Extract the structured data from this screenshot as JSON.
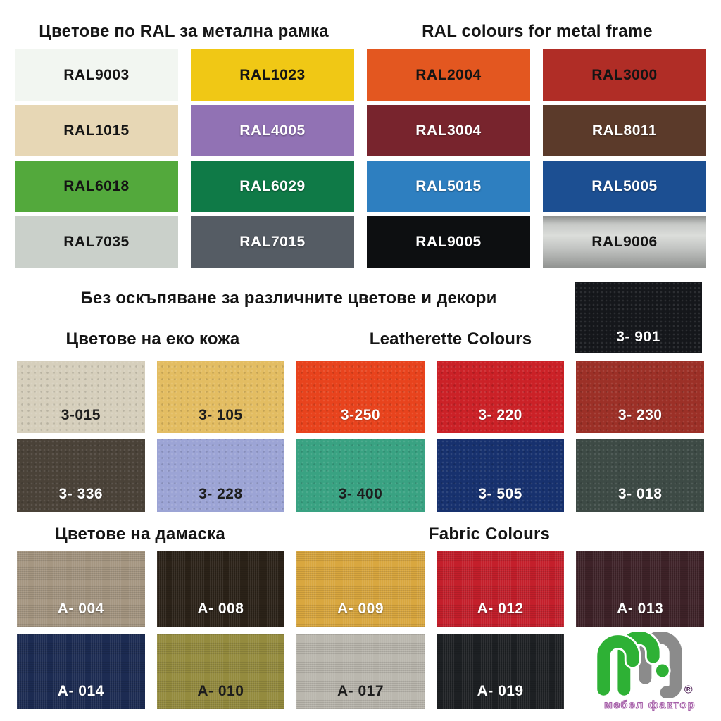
{
  "page": {
    "background": "#ffffff",
    "title_color": "#151515"
  },
  "ral_section": {
    "title_bg": "Цветове по RAL за метална рамка",
    "title_en": "RAL colours for metal frame",
    "swatches": [
      {
        "code": "RAL9003",
        "bg": "#f2f6f1",
        "fg": "#141414"
      },
      {
        "code": "RAL1023",
        "bg": "#f0c815",
        "fg": "#141414"
      },
      {
        "code": "RAL2004",
        "bg": "#e35720",
        "fg": "#141414"
      },
      {
        "code": "RAL3000",
        "bg": "#b02d26",
        "fg": "#141414"
      },
      {
        "code": "RAL1015",
        "bg": "#e7d7b5",
        "fg": "#141414"
      },
      {
        "code": "RAL4005",
        "bg": "#9172b4",
        "fg": "#ffffff"
      },
      {
        "code": "RAL3004",
        "bg": "#78242d",
        "fg": "#ffffff"
      },
      {
        "code": "RAL8011",
        "bg": "#5b3a2a",
        "fg": "#ffffff"
      },
      {
        "code": "RAL6018",
        "bg": "#53a93c",
        "fg": "#141414"
      },
      {
        "code": "RAL6029",
        "bg": "#0f7a47",
        "fg": "#ffffff"
      },
      {
        "code": "RAL5015",
        "bg": "#2e7fc0",
        "fg": "#ffffff"
      },
      {
        "code": "RAL5005",
        "bg": "#1c4f92",
        "fg": "#ffffff"
      },
      {
        "code": "RAL7035",
        "bg": "#cad0ca",
        "fg": "#141414"
      },
      {
        "code": "RAL7015",
        "bg": "#555c64",
        "fg": "#ffffff"
      },
      {
        "code": "RAL9005",
        "bg": "#0d0f11",
        "fg": "#ffffff"
      },
      {
        "code": "RAL9006",
        "bg": "#c4c6c4",
        "fg": "#141414",
        "metallic": true
      }
    ]
  },
  "middle_note": "Без оскъпяване за различните цветове и декори",
  "leatherette_section": {
    "title_bg": "Цветове на еко кожа",
    "title_en": "Leatherette Colours",
    "corner_swatch": {
      "code": "3- 901",
      "bg": "#15171b",
      "fg": "#ffffff"
    },
    "swatches": [
      {
        "code": "3-015",
        "bg": "#d6cfbc",
        "fg": "#1d1d1d"
      },
      {
        "code": "3- 105",
        "bg": "#e3bd62",
        "fg": "#1d1d1d"
      },
      {
        "code": "3-250",
        "bg": "#e8431d",
        "fg": "#ffffff"
      },
      {
        "code": "3- 220",
        "bg": "#cb2127",
        "fg": "#ffffff"
      },
      {
        "code": "3- 230",
        "bg": "#9c3027",
        "fg": "#ffffff"
      },
      {
        "code": "3- 336",
        "bg": "#4a4238",
        "fg": "#ffffff"
      },
      {
        "code": "3- 228",
        "bg": "#9ca4d5",
        "fg": "#1d1d1d"
      },
      {
        "code": "3- 400",
        "bg": "#39a282",
        "fg": "#1d1d1d"
      },
      {
        "code": "3- 505",
        "bg": "#17316e",
        "fg": "#ffffff"
      },
      {
        "code": "3- 018",
        "bg": "#3d4a45",
        "fg": "#ffffff"
      }
    ]
  },
  "fabric_section": {
    "title_bg": "Цветове на дамаска",
    "title_en": "Fabric Colours",
    "swatches": [
      {
        "code": "A- 004",
        "bg": "#a59681",
        "fg": "#ffffff"
      },
      {
        "code": "A- 008",
        "bg": "#2b2218",
        "fg": "#ffffff"
      },
      {
        "code": "A- 009",
        "bg": "#d9a73f",
        "fg": "#ffffff"
      },
      {
        "code": "A- 012",
        "bg": "#c41f2b",
        "fg": "#ffffff"
      },
      {
        "code": "A- 013",
        "bg": "#3e2228",
        "fg": "#ffffff"
      },
      {
        "code": "A- 014",
        "bg": "#1c2b52",
        "fg": "#ffffff"
      },
      {
        "code": "A- 010",
        "bg": "#948b3e",
        "fg": "#1d1d1d"
      },
      {
        "code": "A- 017",
        "bg": "#bab7ae",
        "fg": "#1d1d1d"
      },
      {
        "code": "A- 019",
        "bg": "#1d2023",
        "fg": "#ffffff"
      }
    ]
  },
  "logo": {
    "caption": "мебел фактор",
    "registered": "®",
    "green": "#2eb135",
    "grey": "#8b8b8b",
    "purple": "#a55fa8",
    "reg_color": "#4f2257"
  }
}
